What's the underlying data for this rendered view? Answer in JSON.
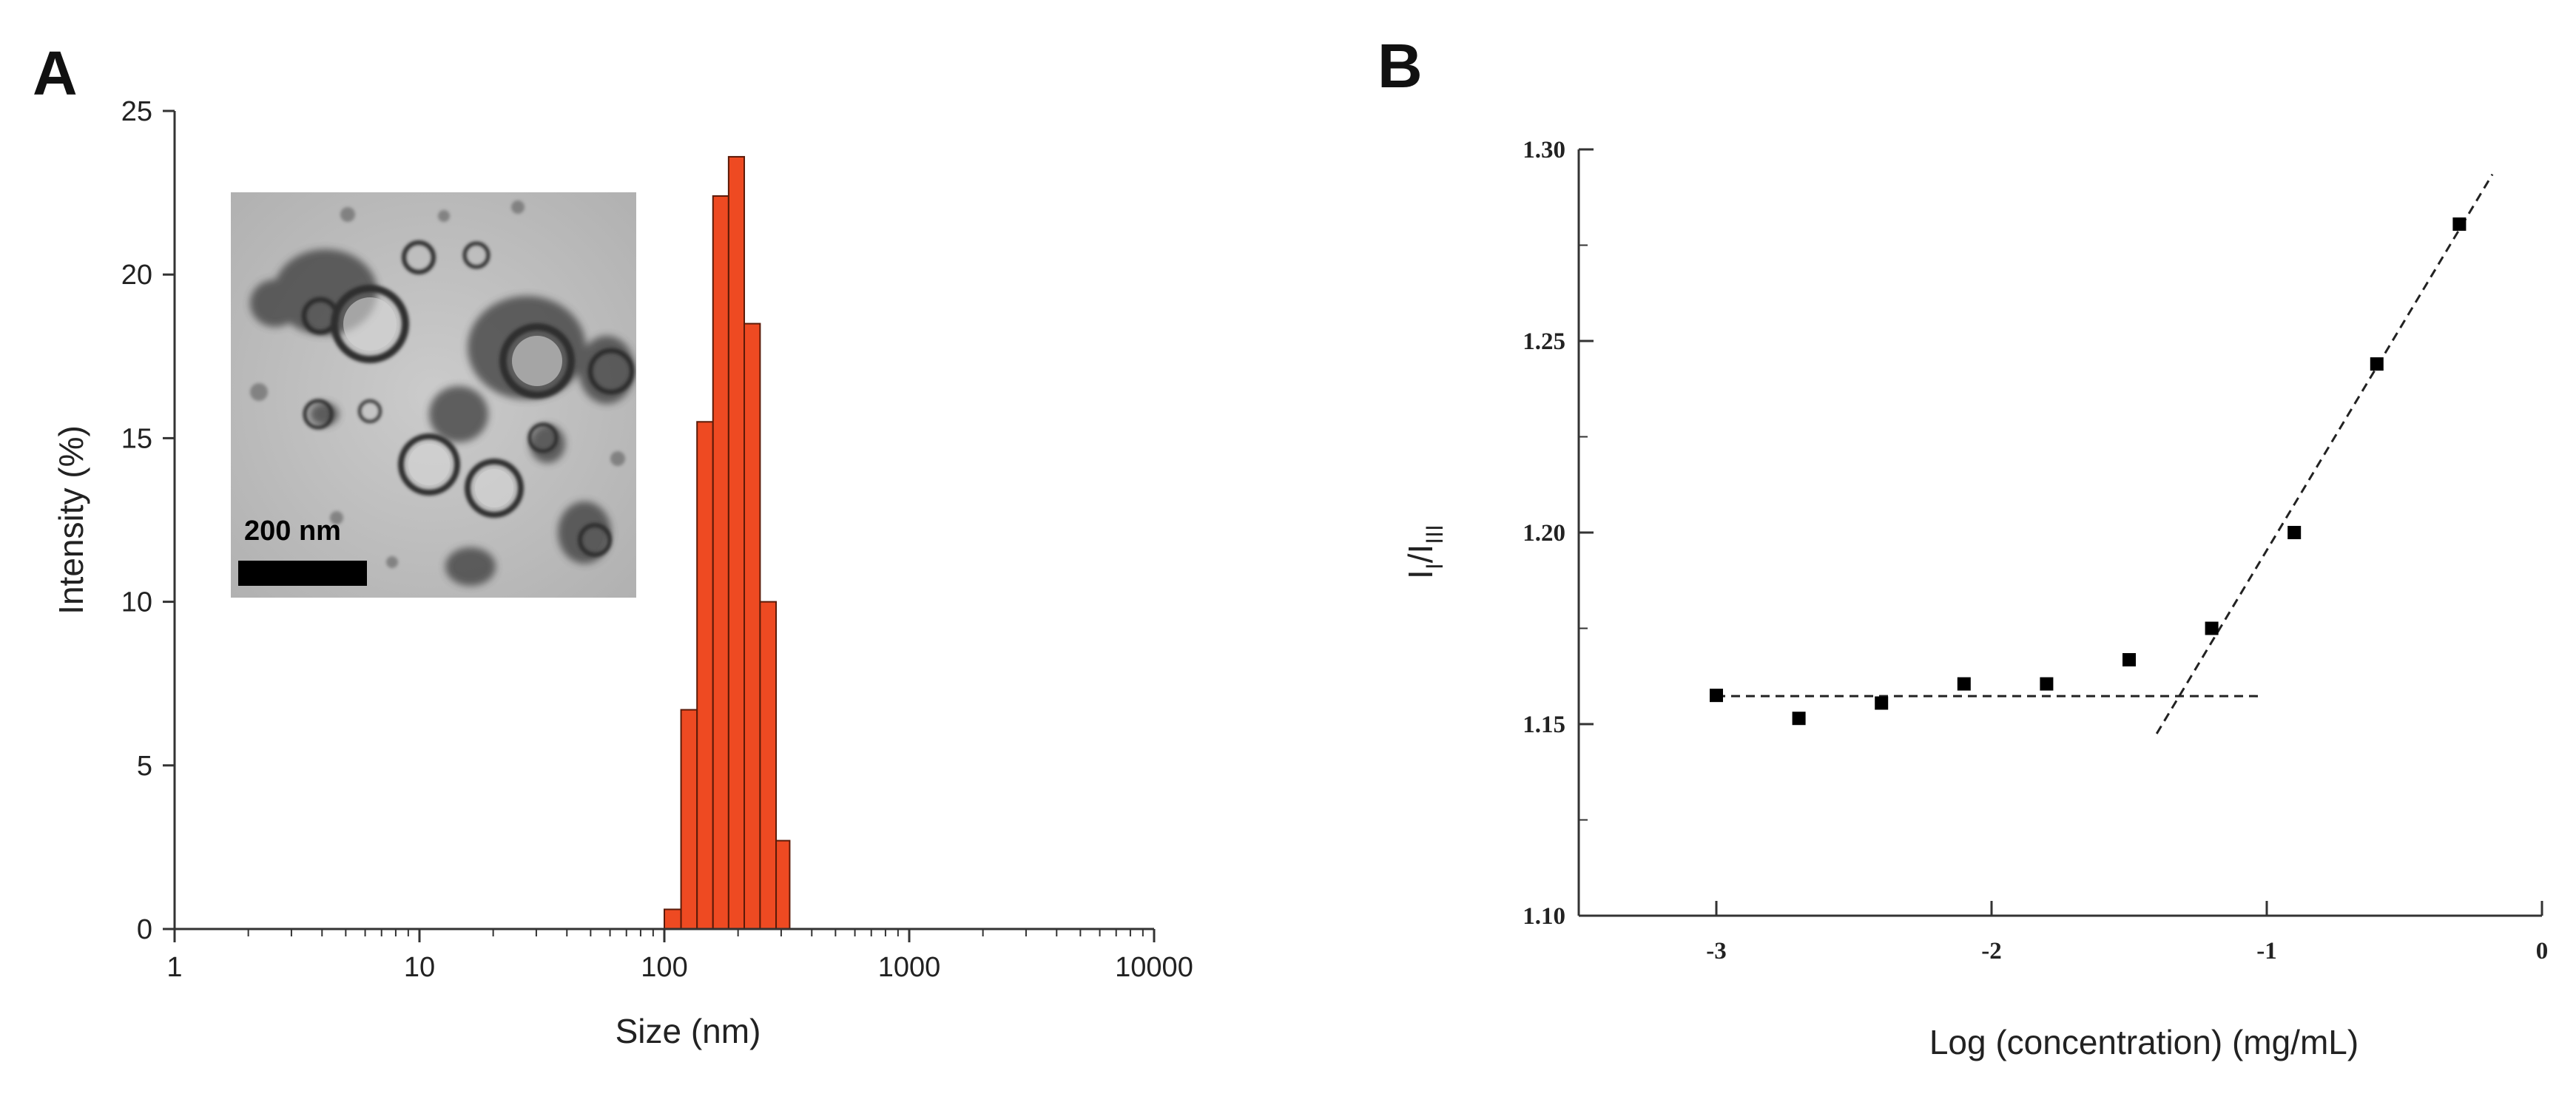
{
  "figure": {
    "panel_a_label": "A",
    "panel_b_label": "B"
  },
  "colors": {
    "bar_fill": "#ee4a22",
    "bar_stroke": "#5a1a08",
    "axis": "#333333",
    "marker": "#000000"
  },
  "chart_data": [
    {
      "type": "bar",
      "panel": "A",
      "title": "",
      "xlabel": "Size (nm)",
      "ylabel": "Intensity (%)",
      "xscale": "log",
      "xlim": [
        1,
        10000
      ],
      "ylim": [
        0,
        25
      ],
      "xticks": [
        1,
        10,
        100,
        1000,
        10000
      ],
      "xtick_labels": [
        "1",
        "10",
        "100",
        "1000",
        "10000"
      ],
      "yticks": [
        0,
        5,
        10,
        15,
        20,
        25
      ],
      "ytick_labels": [
        "0",
        "5",
        "10",
        "15",
        "20",
        "25"
      ],
      "bins": [
        {
          "from": 100,
          "to": 117,
          "value": 0.6
        },
        {
          "from": 117,
          "to": 136,
          "value": 6.7
        },
        {
          "from": 136,
          "to": 158,
          "value": 15.5
        },
        {
          "from": 158,
          "to": 183,
          "value": 22.4
        },
        {
          "from": 183,
          "to": 212,
          "value": 23.6
        },
        {
          "from": 212,
          "to": 246,
          "value": 18.5
        },
        {
          "from": 246,
          "to": 286,
          "value": 10.0
        },
        {
          "from": 286,
          "to": 325,
          "value": 2.7
        }
      ],
      "inset": {
        "description": "TEM micrograph of vesicles",
        "scale_bar_label": "200 nm"
      },
      "grid": false
    },
    {
      "type": "scatter",
      "panel": "B",
      "title": "",
      "xlabel": "Log (concentration) (mg/mL)",
      "ylabel": {
        "base": "I",
        "sub1": "I",
        "sep": "/",
        "sub2": "III"
      },
      "xlim": [
        -3.5,
        0
      ],
      "ylim": [
        1.1,
        1.3
      ],
      "xticks": [
        -3,
        -2,
        -1,
        0
      ],
      "xtick_labels": [
        "-3",
        "-2",
        "-1",
        "0"
      ],
      "yticks": [
        1.1,
        1.15,
        1.2,
        1.25,
        1.3
      ],
      "ytick_labels": [
        "1.10",
        "1.15",
        "1.20",
        "1.25",
        "1.30"
      ],
      "x": [
        -3.0,
        -2.7,
        -2.4,
        -2.1,
        -1.8,
        -1.5,
        -1.2,
        -0.9,
        -0.6,
        -0.3
      ],
      "y": [
        1.1575,
        1.1515,
        1.1555,
        1.1605,
        1.1605,
        1.1668,
        1.175,
        1.2,
        1.244,
        1.2805
      ],
      "fit_lines": [
        {
          "name": "baseline",
          "style": "dashed",
          "x": [
            -3.0,
            -1.03
          ],
          "y": [
            1.1573,
            1.1573
          ]
        },
        {
          "name": "steep",
          "style": "dashed",
          "x": [
            -1.4,
            -0.18
          ],
          "y": [
            1.1475,
            1.2935
          ]
        }
      ],
      "grid": false
    }
  ]
}
